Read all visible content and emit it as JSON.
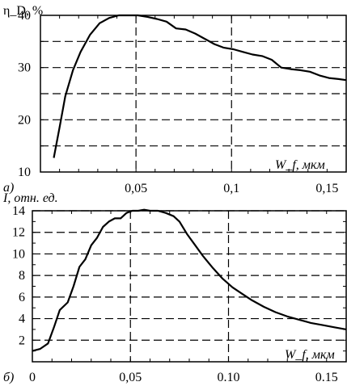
{
  "chart_data": [
    {
      "type": "line",
      "panel_label": "а)",
      "ylabel": "η_D, %",
      "xlabel": "W_f, мкм",
      "xlim": [
        0,
        0.16
      ],
      "ylim": [
        10,
        40
      ],
      "x_ticks": [
        {
          "v": 0.05,
          "label": "0,05"
        },
        {
          "v": 0.1,
          "label": "0,1"
        },
        {
          "v": 0.15,
          "label": "0,15"
        }
      ],
      "y_ticks": [
        {
          "v": 10,
          "label": "10"
        },
        {
          "v": 20,
          "label": "20"
        },
        {
          "v": 30,
          "label": "30"
        },
        {
          "v": 40,
          "label": "40"
        }
      ],
      "h_grid": [
        15,
        20,
        25,
        30,
        35
      ],
      "v_grid": [
        0.05,
        0.1
      ],
      "grid": true,
      "series": [
        {
          "x": [
            0.007,
            0.01,
            0.013,
            0.017,
            0.021,
            0.026,
            0.031,
            0.036,
            0.041,
            0.046,
            0.051,
            0.056,
            0.061,
            0.066,
            0.071,
            0.076,
            0.081,
            0.086,
            0.091,
            0.096,
            0.101,
            0.106,
            0.111,
            0.116,
            0.121,
            0.126,
            0.131,
            0.136,
            0.141,
            0.146,
            0.151,
            0.156,
            0.16
          ],
          "y": [
            12.7,
            18.5,
            24.5,
            29.5,
            33.0,
            36.3,
            38.5,
            39.5,
            40.0,
            40.0,
            40.0,
            39.7,
            39.3,
            38.8,
            37.5,
            37.3,
            36.5,
            35.5,
            34.5,
            33.8,
            33.5,
            33.0,
            32.5,
            32.2,
            31.5,
            30.0,
            29.7,
            29.5,
            29.2,
            28.5,
            28.0,
            27.8,
            27.6
          ]
        }
      ]
    },
    {
      "type": "line",
      "panel_label": "б)",
      "ylabel": "I, отн. ед.",
      "xlabel": "W_f, мкм",
      "xlim": [
        0,
        0.16
      ],
      "ylim": [
        0,
        14
      ],
      "x_ticks": [
        {
          "v": 0,
          "label": "0"
        },
        {
          "v": 0.05,
          "label": "0,05"
        },
        {
          "v": 0.1,
          "label": "0.10"
        },
        {
          "v": 0.15,
          "label": "0.15"
        }
      ],
      "y_ticks": [
        {
          "v": 2,
          "label": "2"
        },
        {
          "v": 4,
          "label": "4"
        },
        {
          "v": 6,
          "label": "6"
        },
        {
          "v": 8,
          "label": "8"
        },
        {
          "v": 10,
          "label": "10"
        },
        {
          "v": 12,
          "label": "12"
        },
        {
          "v": 14,
          "label": "14"
        }
      ],
      "h_grid": [
        2,
        4,
        6,
        8,
        10,
        12,
        14
      ],
      "v_grid": [
        0.05,
        0.1
      ],
      "grid": true,
      "series": [
        {
          "x": [
            0.0,
            0.004,
            0.008,
            0.011,
            0.014,
            0.018,
            0.021,
            0.024,
            0.027,
            0.03,
            0.033,
            0.036,
            0.039,
            0.042,
            0.045,
            0.048,
            0.051,
            0.054,
            0.057,
            0.06,
            0.064,
            0.068,
            0.072,
            0.075,
            0.079,
            0.083,
            0.087,
            0.092,
            0.097,
            0.102,
            0.107,
            0.112,
            0.118,
            0.124,
            0.13,
            0.136,
            0.142,
            0.148,
            0.154,
            0.16
          ],
          "y": [
            1.0,
            1.2,
            1.7,
            3.2,
            4.8,
            5.5,
            7.0,
            8.8,
            9.5,
            10.8,
            11.5,
            12.5,
            13.0,
            13.3,
            13.3,
            13.8,
            14.0,
            14.0,
            14.1,
            14.0,
            14.0,
            13.8,
            13.5,
            13.0,
            11.8,
            10.8,
            9.8,
            8.7,
            7.7,
            6.9,
            6.3,
            5.7,
            5.1,
            4.6,
            4.2,
            3.9,
            3.6,
            3.4,
            3.2,
            3.0
          ]
        }
      ]
    }
  ]
}
